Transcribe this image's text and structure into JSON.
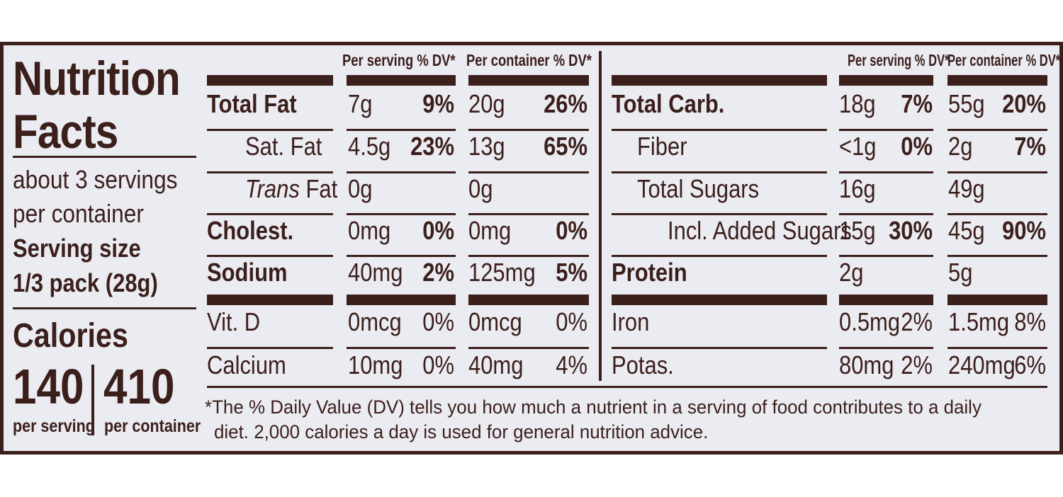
{
  "label": {
    "title_line1": "Nutrition",
    "title_line2": "Facts",
    "servings_line1": "about 3 servings",
    "servings_line2": "per container",
    "serving_size_label": "Serving size",
    "serving_size_value": "1/3 pack (28g)",
    "calories_label": "Calories",
    "calories_per_serving": "140",
    "calories_per_container": "410",
    "per_serving_caption": "per serving",
    "per_container_caption": "per container"
  },
  "headers": {
    "per_serving_dv": "Per serving % DV*",
    "per_container_dv": "Per container % DV*"
  },
  "left_rows": [
    {
      "name": "Total Fat",
      "serv_amt": "7g",
      "serv_dv": "9%",
      "cont_amt": "20g",
      "cont_dv": "26%"
    },
    {
      "name": "Sat. Fat",
      "serv_amt": "4.5g",
      "serv_dv": "23%",
      "cont_amt": "13g",
      "cont_dv": "65%"
    },
    {
      "name_italic": "Trans",
      "name": " Fat",
      "serv_amt": "0g",
      "serv_dv": "",
      "cont_amt": "0g",
      "cont_dv": ""
    },
    {
      "name": "Cholest.",
      "serv_amt": "0mg",
      "serv_dv": "0%",
      "cont_amt": "0mg",
      "cont_dv": "0%"
    },
    {
      "name": "Sodium",
      "serv_amt": "40mg",
      "serv_dv": "2%",
      "cont_amt": "125mg",
      "cont_dv": "5%"
    },
    {
      "name": "Vit. D",
      "serv_amt": "0mcg",
      "serv_dv": "0%",
      "cont_amt": "0mcg",
      "cont_dv": "0%"
    },
    {
      "name": "Calcium",
      "serv_amt": "10mg",
      "serv_dv": "0%",
      "cont_amt": "40mg",
      "cont_dv": "4%"
    }
  ],
  "right_rows": [
    {
      "name": "Total Carb.",
      "serv_amt": "18g",
      "serv_dv": "7%",
      "cont_amt": "55g",
      "cont_dv": "20%"
    },
    {
      "name": "Fiber",
      "serv_amt": "<1g",
      "serv_dv": "0%",
      "cont_amt": "2g",
      "cont_dv": "7%"
    },
    {
      "name": "Total Sugars",
      "serv_amt": "16g",
      "serv_dv": "",
      "cont_amt": "49g",
      "cont_dv": ""
    },
    {
      "name": "Incl. Added Sugars",
      "serv_amt": "15g",
      "serv_dv": "30%",
      "cont_amt": "45g",
      "cont_dv": "90%"
    },
    {
      "name": "Protein",
      "serv_amt": "2g",
      "serv_dv": "",
      "cont_amt": "5g",
      "cont_dv": ""
    },
    {
      "name": "Iron",
      "serv_amt": "0.5mg",
      "serv_dv": "2%",
      "cont_amt": "1.5mg",
      "cont_dv": "8%"
    },
    {
      "name": "Potas.",
      "serv_amt": "80mg",
      "serv_dv": "2%",
      "cont_amt": "240mg",
      "cont_dv": "6%"
    }
  ],
  "footnote_line1": "*The % Daily Value (DV) tells you how much a nutrient in a serving of food contributes to a daily",
  "footnote_line2": "diet. 2,000 calories a day is used for general nutrition advice.",
  "colors": {
    "ink": "#3b1f1b",
    "background": "#ebebf2"
  }
}
